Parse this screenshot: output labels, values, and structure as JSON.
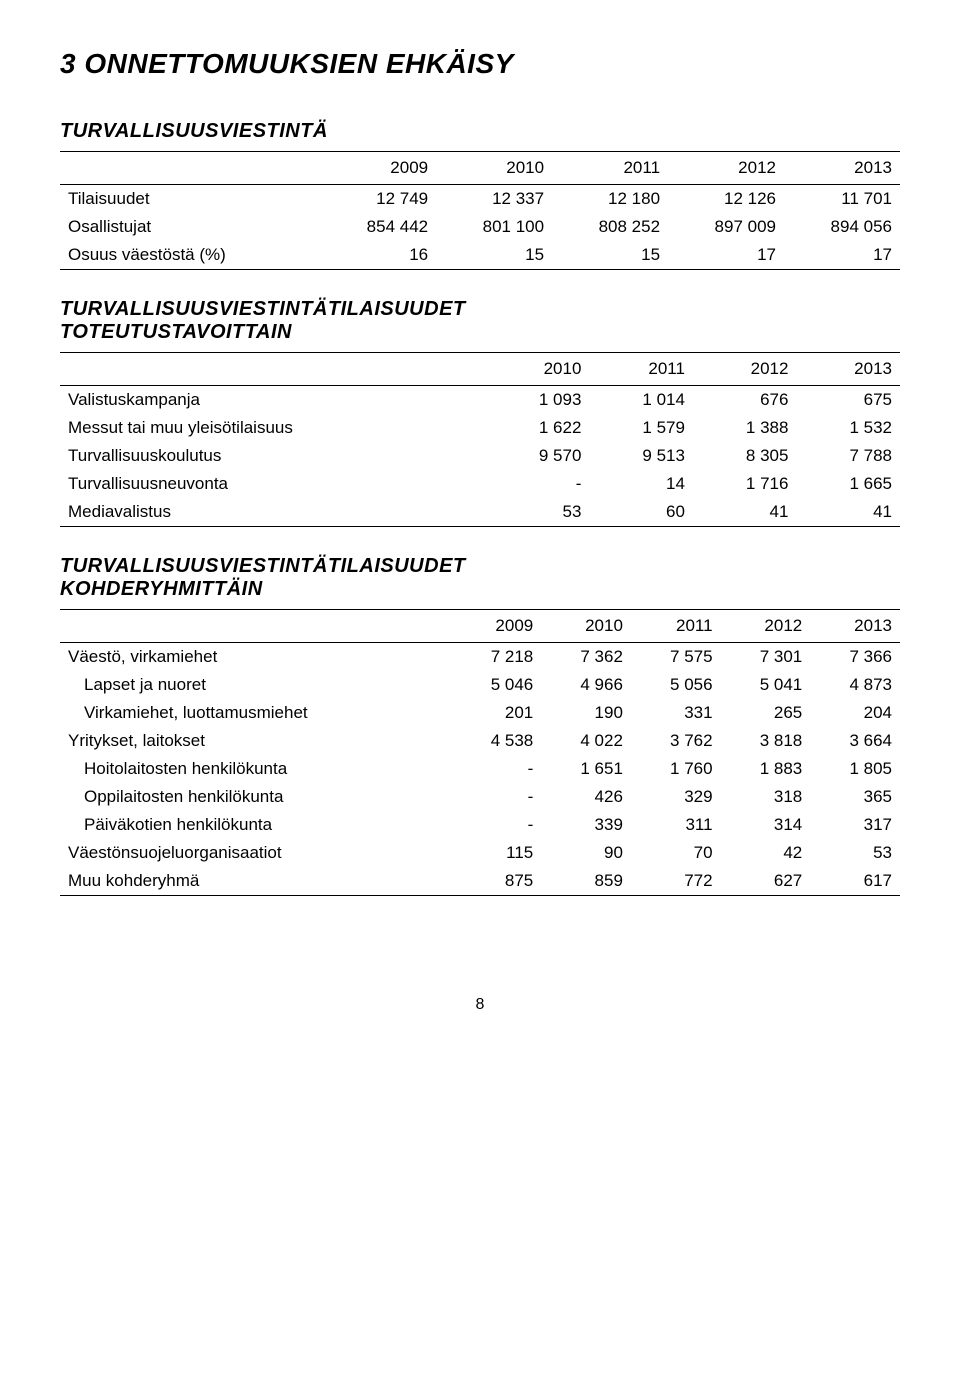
{
  "chapter_title": "3 ONNETTOMUUKSIEN EHKÄISY",
  "table1": {
    "title": "TURVALLISUUSVIESTINTÄ",
    "years": [
      "2009",
      "2010",
      "2011",
      "2012",
      "2013"
    ],
    "rows": [
      {
        "label": "Tilaisuudet",
        "v": [
          "12 749",
          "12 337",
          "12 180",
          "12 126",
          "11 701"
        ]
      },
      {
        "label": "Osallistujat",
        "v": [
          "854 442",
          "801 100",
          "808 252",
          "897 009",
          "894 056"
        ]
      },
      {
        "label": "Osuus väestöstä (%)",
        "v": [
          "16",
          "15",
          "15",
          "17",
          "17"
        ]
      }
    ]
  },
  "table2": {
    "title_line1": "TURVALLISUUSVIESTINTÄTILAISUUDET",
    "title_line2": "TOTEUTUSTAVOITTAIN",
    "years": [
      "2010",
      "2011",
      "2012",
      "2013"
    ],
    "rows": [
      {
        "label": "Valistuskampanja",
        "v": [
          "1 093",
          "1 014",
          "676",
          "675"
        ]
      },
      {
        "label": "Messut tai muu yleisötilaisuus",
        "v": [
          "1 622",
          "1 579",
          "1 388",
          "1 532"
        ]
      },
      {
        "label": "Turvallisuuskoulutus",
        "v": [
          "9 570",
          "9 513",
          "8 305",
          "7 788"
        ]
      },
      {
        "label": "Turvallisuusneuvonta",
        "v": [
          "-",
          "14",
          "1 716",
          "1 665"
        ]
      },
      {
        "label": "Mediavalistus",
        "v": [
          "53",
          "60",
          "41",
          "41"
        ]
      }
    ]
  },
  "table3": {
    "title_line1": "TURVALLISUUSVIESTINTÄTILAISUUDET",
    "title_line2": "KOHDERYHMITTÄIN",
    "years": [
      "2009",
      "2010",
      "2011",
      "2012",
      "2013"
    ],
    "rows": [
      {
        "label": "Väestö, virkamiehet",
        "v": [
          "7 218",
          "7 362",
          "7 575",
          "7 301",
          "7 366"
        ],
        "indent": 0
      },
      {
        "label": "Lapset ja nuoret",
        "v": [
          "5 046",
          "4 966",
          "5 056",
          "5 041",
          "4 873"
        ],
        "indent": 1
      },
      {
        "label": "Virkamiehet, luottamusmiehet",
        "v": [
          "201",
          "190",
          "331",
          "265",
          "204"
        ],
        "indent": 1
      },
      {
        "label": "Yritykset, laitokset",
        "v": [
          "4 538",
          "4 022",
          "3 762",
          "3 818",
          "3 664"
        ],
        "indent": 0
      },
      {
        "label": "Hoitolaitosten henkilökunta",
        "v": [
          "-",
          "1 651",
          "1 760",
          "1 883",
          "1 805"
        ],
        "indent": 1
      },
      {
        "label": "Oppilaitosten henkilökunta",
        "v": [
          "-",
          "426",
          "329",
          "318",
          "365"
        ],
        "indent": 1
      },
      {
        "label": "Päiväkotien henkilökunta",
        "v": [
          "-",
          "339",
          "311",
          "314",
          "317"
        ],
        "indent": 1
      },
      {
        "label": "Väestönsuojeluorganisaatiot",
        "v": [
          "115",
          "90",
          "70",
          "42",
          "53"
        ],
        "indent": 0
      },
      {
        "label": "Muu kohderyhmä",
        "v": [
          "875",
          "859",
          "772",
          "627",
          "617"
        ],
        "indent": 0
      }
    ]
  },
  "page_number": "8"
}
